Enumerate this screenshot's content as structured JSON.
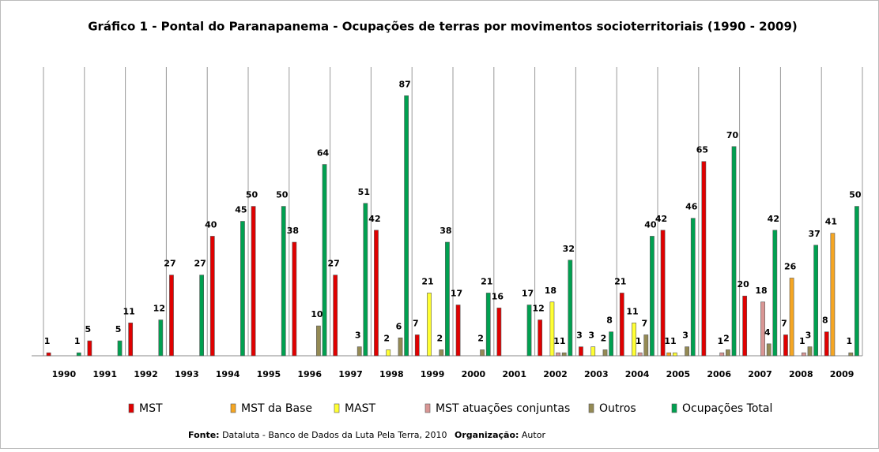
{
  "chart_data": {
    "type": "bar",
    "title": "Gráfico 1 - Pontal do Paranapanema - Ocupações de terras por movimentos socioterritoriais (1990 - 2009)",
    "categories": [
      "1990",
      "1991",
      "1992",
      "1993",
      "1994",
      "1995",
      "1996",
      "1997",
      "1998",
      "1999",
      "2000",
      "2001",
      "2002",
      "2003",
      "2004",
      "2005",
      "2006",
      "2007",
      "2008",
      "2009"
    ],
    "series": [
      {
        "name": "MST",
        "color": "#e00000",
        "values": [
          1,
          5,
          11,
          27,
          40,
          50,
          38,
          27,
          42,
          7,
          17,
          16,
          12,
          3,
          21,
          42,
          65,
          20,
          7,
          8
        ]
      },
      {
        "name": "MST da Base",
        "color": "#f5a623",
        "values": [
          null,
          null,
          null,
          null,
          null,
          null,
          null,
          null,
          null,
          null,
          null,
          null,
          null,
          null,
          null,
          1,
          null,
          null,
          26,
          41
        ]
      },
      {
        "name": "MAST",
        "color": "#ffff33",
        "values": [
          null,
          null,
          null,
          null,
          null,
          null,
          null,
          null,
          2,
          21,
          null,
          null,
          18,
          3,
          11,
          1,
          null,
          null,
          null,
          null
        ]
      },
      {
        "name": "MST atuações conjuntas",
        "color": "#d99694",
        "values": [
          null,
          null,
          null,
          null,
          null,
          null,
          null,
          null,
          null,
          null,
          null,
          null,
          1,
          null,
          1,
          null,
          1,
          18,
          1,
          null
        ]
      },
      {
        "name": "Outros",
        "color": "#948a54",
        "values": [
          null,
          null,
          null,
          null,
          null,
          null,
          10,
          3,
          6,
          2,
          2,
          null,
          1,
          2,
          7,
          3,
          2,
          4,
          3,
          1
        ]
      },
      {
        "name": "Ocupações Total",
        "color": "#00a050",
        "values": [
          1,
          5,
          12,
          27,
          45,
          50,
          64,
          51,
          87,
          38,
          21,
          17,
          32,
          8,
          40,
          46,
          70,
          42,
          37,
          50
        ]
      }
    ],
    "ylim": [
      0,
      90
    ],
    "grid": true,
    "legend": "bottom",
    "source_label": "Fonte:",
    "source": "Dataluta - Banco de Dados da Luta Pela Terra, 2010",
    "org_label": "Organização:",
    "org": "Autor"
  }
}
